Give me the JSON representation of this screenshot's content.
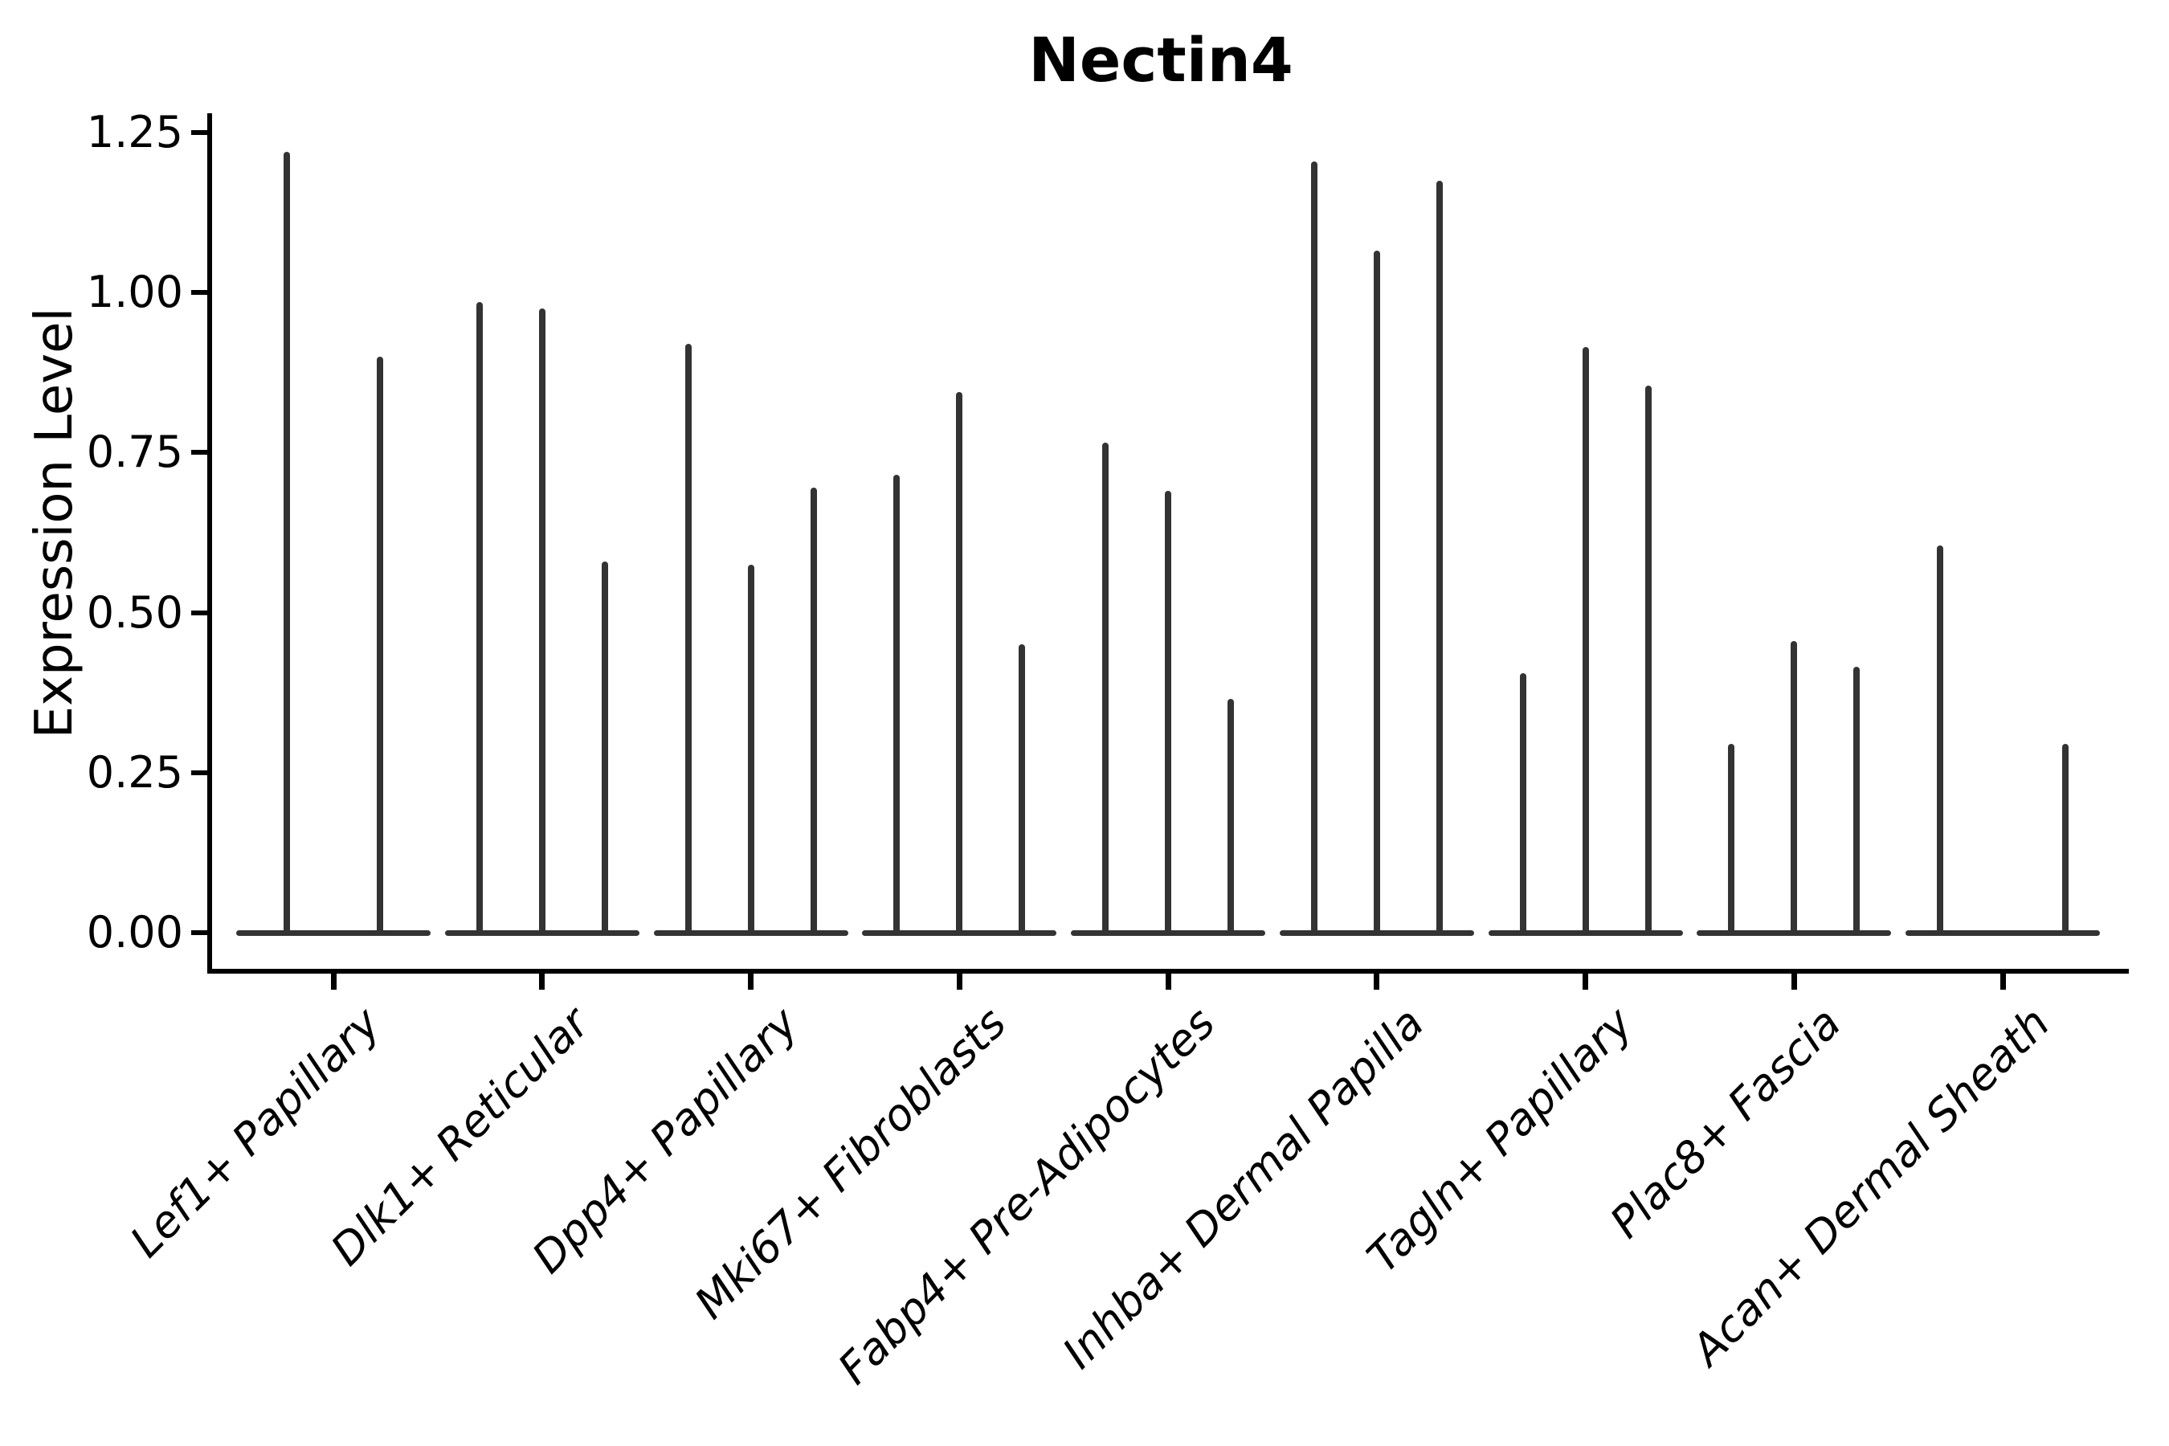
{
  "title": "Nectin4",
  "chart_data": {
    "type": "violin",
    "title": "Nectin4",
    "xlabel": "",
    "ylabel": "Expression Level",
    "ylim": [
      0,
      1.25
    ],
    "yticks": [
      "0.00",
      "0.25",
      "0.50",
      "0.75",
      "1.00",
      "1.25"
    ],
    "ytick_values": [
      0,
      0.25,
      0.5,
      0.75,
      1.0,
      1.25
    ],
    "grid": false,
    "legend": "none",
    "note": "Violins are collapsed to near-zero width; each appears as a thin vertical spike rising from a flat baseline at 0. Value = top of each spike (max expression).",
    "categories": [
      {
        "label": "Lef1+ Papillary",
        "spikes": [
          {
            "offset": -58,
            "value": 1.22
          },
          {
            "offset": 58,
            "value": 0.9
          }
        ]
      },
      {
        "label": "Dlk1+ Reticular",
        "spikes": [
          {
            "offset": -78,
            "value": 0.985
          },
          {
            "offset": 0,
            "value": 0.975
          },
          {
            "offset": 78,
            "value": 0.58
          }
        ]
      },
      {
        "label": "Dpp4+ Papillary",
        "spikes": [
          {
            "offset": -78,
            "value": 0.92
          },
          {
            "offset": 0,
            "value": 0.575
          },
          {
            "offset": 78,
            "value": 0.695
          }
        ]
      },
      {
        "label": "Mki67+ Fibroblasts",
        "spikes": [
          {
            "offset": -78,
            "value": 0.715
          },
          {
            "offset": 0,
            "value": 0.845
          },
          {
            "offset": 78,
            "value": 0.45
          }
        ]
      },
      {
        "label": "Fabp4+ Pre-Adipocytes",
        "spikes": [
          {
            "offset": -78,
            "value": 0.765
          },
          {
            "offset": 0,
            "value": 0.69
          },
          {
            "offset": 78,
            "value": 0.365
          }
        ]
      },
      {
        "label": "Inhba+ Dermal Papilla",
        "spikes": [
          {
            "offset": -78,
            "value": 1.205
          },
          {
            "offset": 0,
            "value": 1.065
          },
          {
            "offset": 78,
            "value": 1.175
          }
        ]
      },
      {
        "label": "Tagln+ Papillary",
        "spikes": [
          {
            "offset": -78,
            "value": 0.405
          },
          {
            "offset": 0,
            "value": 0.915
          },
          {
            "offset": 78,
            "value": 0.855
          }
        ]
      },
      {
        "label": "Plac8+ Fascia",
        "spikes": [
          {
            "offset": -78,
            "value": 0.295
          },
          {
            "offset": 0,
            "value": 0.455
          },
          {
            "offset": 78,
            "value": 0.415
          }
        ]
      },
      {
        "label": "Acan+ Dermal Sheath",
        "spikes": [
          {
            "offset": -78,
            "value": 0.605
          },
          {
            "offset": 78,
            "value": 0.295
          }
        ]
      }
    ]
  },
  "colors": {
    "line": "#333333",
    "axis": "#000000",
    "text": "#000000",
    "background": "#ffffff"
  }
}
